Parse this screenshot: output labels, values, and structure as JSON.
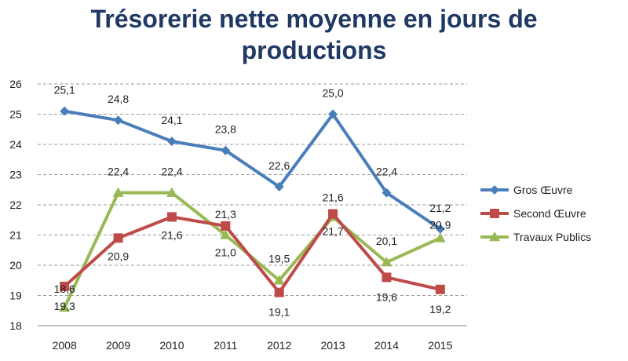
{
  "chart_data": {
    "type": "line",
    "title": "Trésorerie nette moyenne en jours de productions",
    "categories": [
      "2008",
      "2009",
      "2010",
      "2011",
      "2012",
      "2013",
      "2014",
      "2015"
    ],
    "y_ticks": [
      "18",
      "19",
      "20",
      "21",
      "22",
      "23",
      "24",
      "25",
      "26"
    ],
    "ylim": [
      18,
      26
    ],
    "grid": true,
    "legend_position": "right",
    "series": [
      {
        "name": "Gros Œuvre",
        "color": "#4a7ebb",
        "marker": "diamond",
        "values": [
          25.1,
          24.8,
          24.1,
          23.8,
          22.6,
          25.0,
          22.4,
          21.2
        ],
        "labels": [
          "25,1",
          "24,8",
          "24,1",
          "23,8",
          "22,6",
          "25,0",
          "22,4",
          "21,2"
        ]
      },
      {
        "name": "Second Œuvre",
        "color": "#be4b48",
        "marker": "square",
        "values": [
          19.3,
          20.9,
          21.6,
          21.3,
          19.1,
          21.7,
          19.6,
          19.2
        ],
        "labels": [
          "19,3",
          "20,9",
          "21,6",
          "21,3",
          "19,1",
          "21,7",
          "19,6",
          "19,2"
        ]
      },
      {
        "name": "Travaux Publics",
        "color": "#98b954",
        "marker": "triangle",
        "values": [
          18.6,
          22.4,
          22.4,
          21.0,
          19.5,
          21.6,
          20.1,
          20.9
        ],
        "labels": [
          "18,6",
          "22,4",
          "22,4",
          "21,0",
          "19,5",
          "21,6",
          "20,1",
          "20,9"
        ]
      }
    ]
  }
}
